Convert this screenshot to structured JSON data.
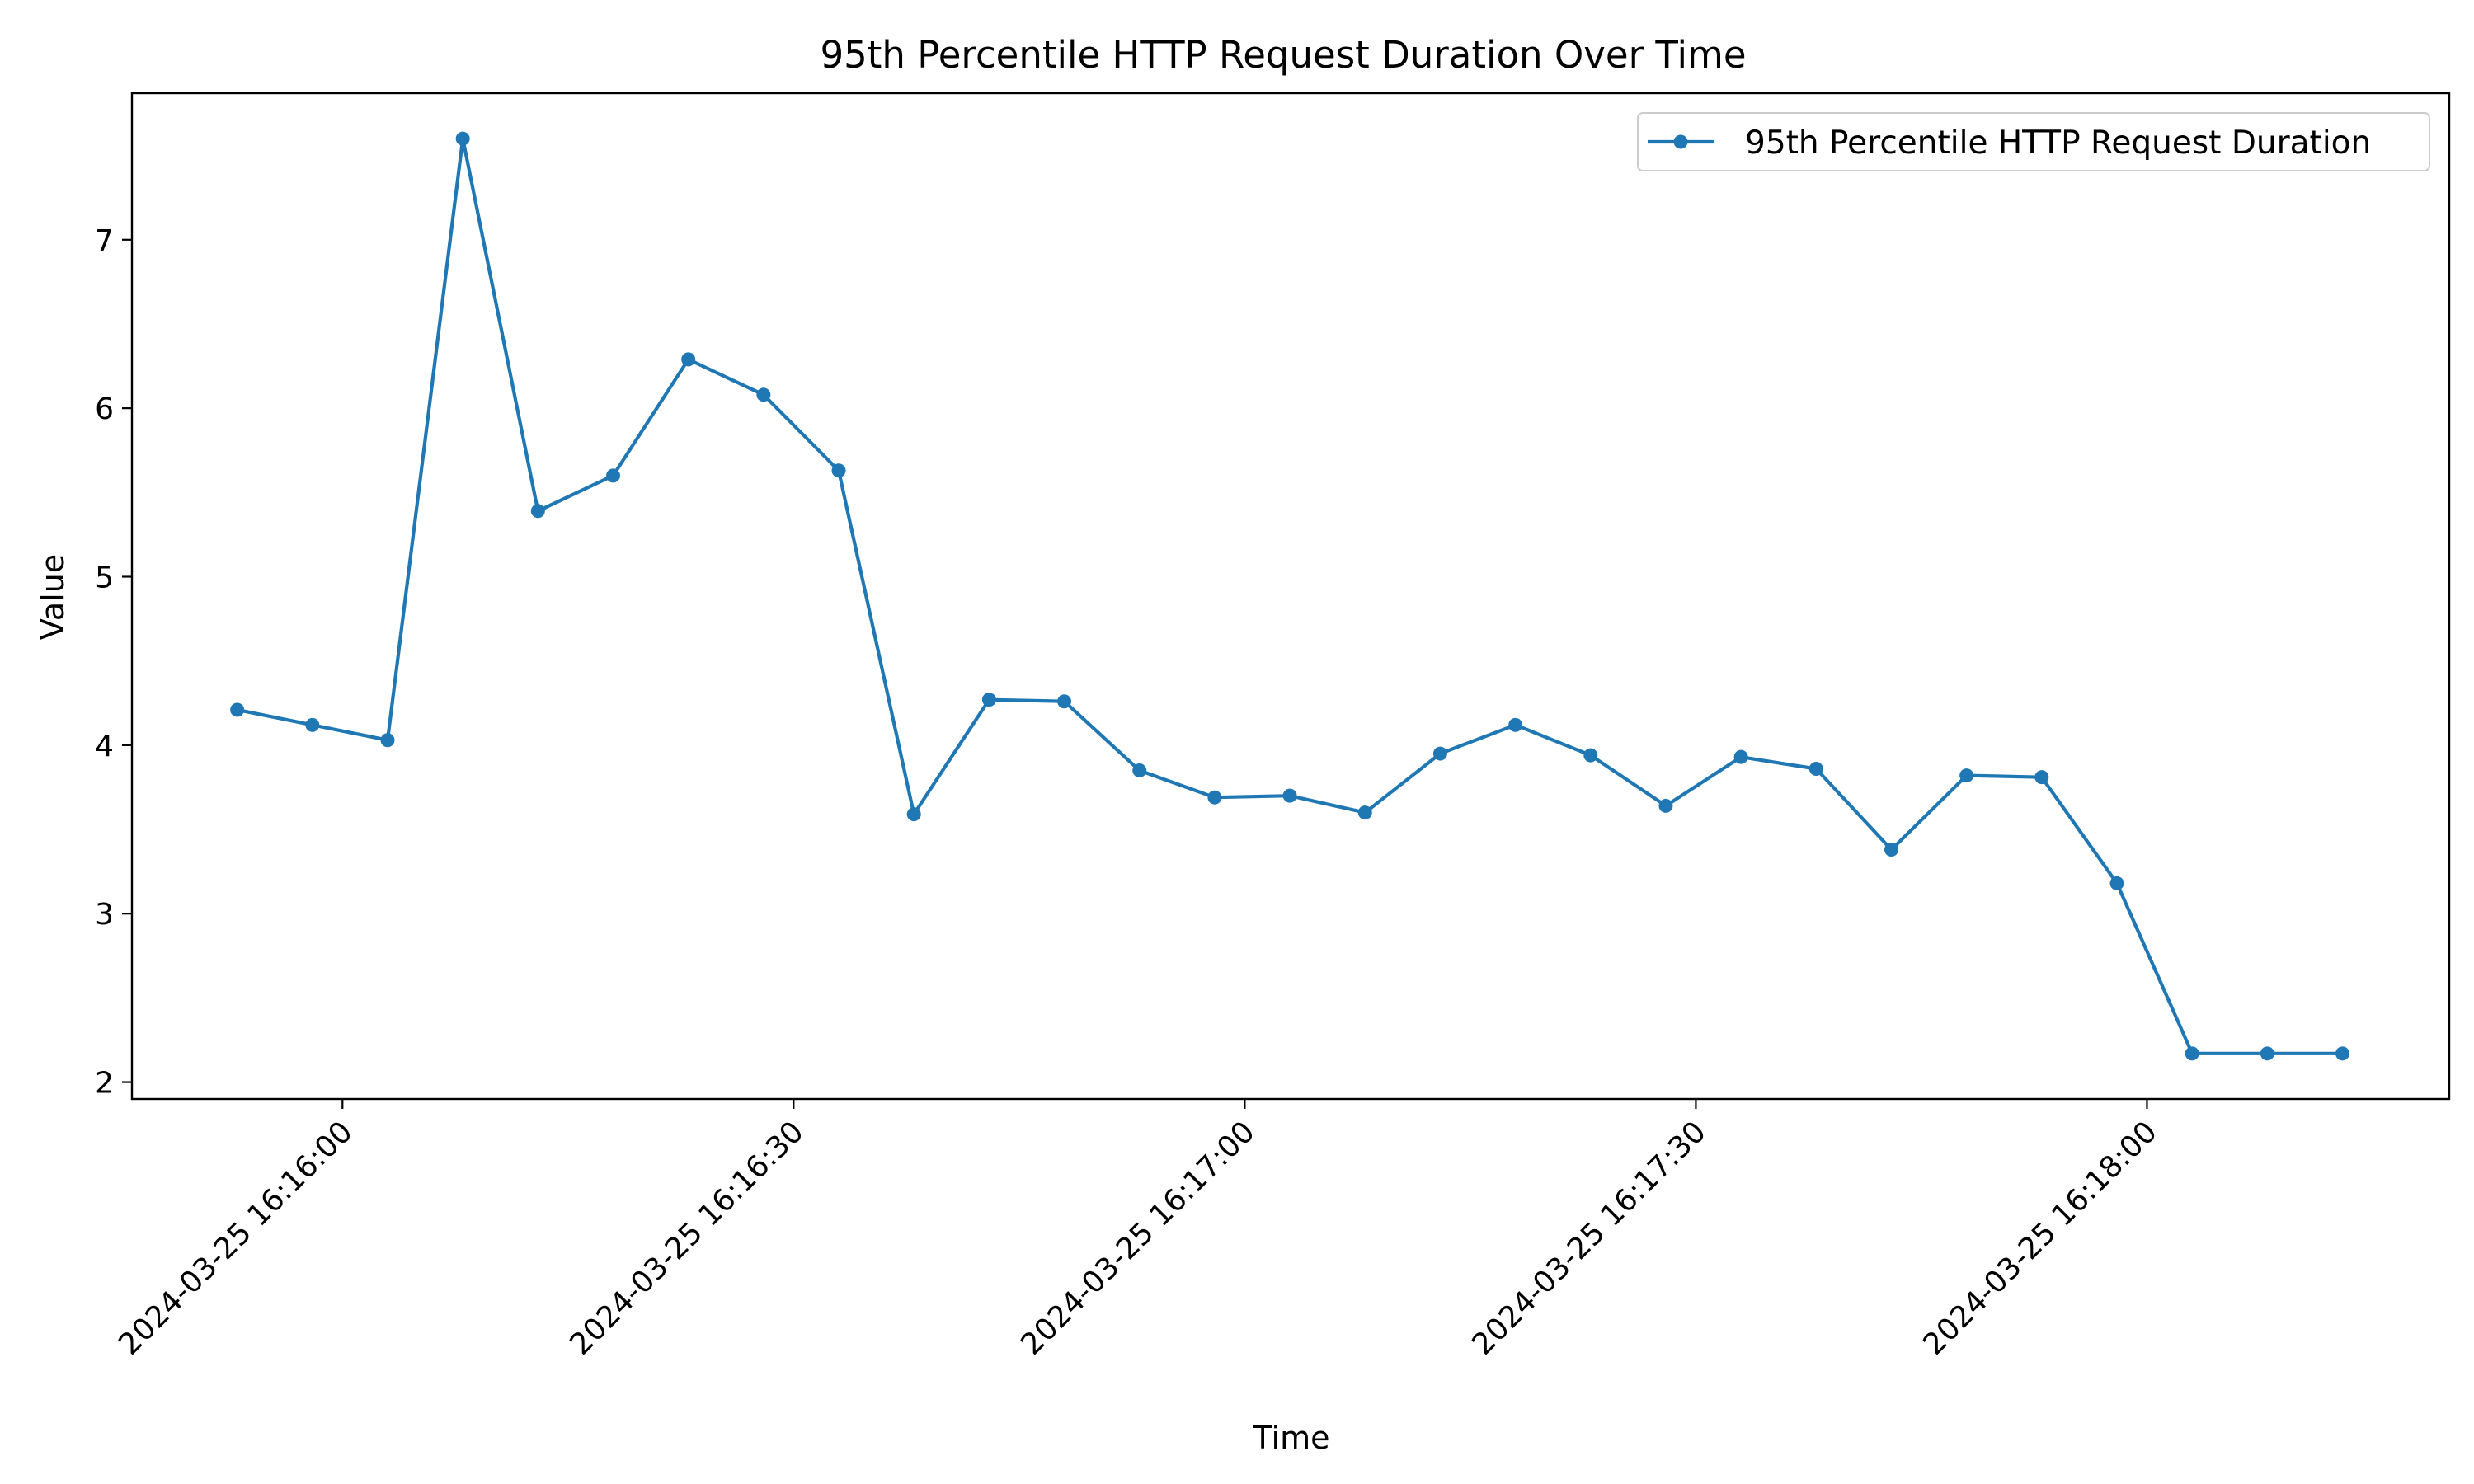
{
  "chart_data": {
    "type": "line",
    "title": "95th Percentile HTTP Request Duration Over Time",
    "xlabel": "Time",
    "ylabel": "Value",
    "x_ticks": [
      {
        "t": 0,
        "label": "2024-03-25 16:16:00"
      },
      {
        "t": 30,
        "label": "2024-03-25 16:16:30"
      },
      {
        "t": 60,
        "label": "2024-03-25 16:17:00"
      },
      {
        "t": 90,
        "label": "2024-03-25 16:17:30"
      },
      {
        "t": 120,
        "label": "2024-03-25 16:18:00"
      }
    ],
    "y_ticks": [
      2,
      3,
      4,
      5,
      6,
      7
    ],
    "ylim": [
      1.9,
      7.87
    ],
    "xlim": [
      -14,
      140.1
    ],
    "grid": false,
    "legend_position": "upper right",
    "series": [
      {
        "name": "95th Percentile HTTP Request Duration",
        "color": "#1f77b4",
        "marker": "circle",
        "x": [
          -7,
          -2,
          3,
          8,
          13,
          18,
          23,
          28,
          33,
          38,
          43,
          48,
          53,
          58,
          63,
          68,
          73,
          78,
          83,
          88,
          93,
          98,
          103,
          108,
          113,
          118,
          123,
          128,
          133
        ],
        "y": [
          4.21,
          4.12,
          4.03,
          7.6,
          5.39,
          5.6,
          6.29,
          6.08,
          5.63,
          3.59,
          4.27,
          4.26,
          3.85,
          3.69,
          3.7,
          3.6,
          3.95,
          4.12,
          3.94,
          3.64,
          3.93,
          3.86,
          3.38,
          3.82,
          3.81,
          3.18,
          2.17,
          2.17,
          2.17
        ]
      }
    ]
  }
}
